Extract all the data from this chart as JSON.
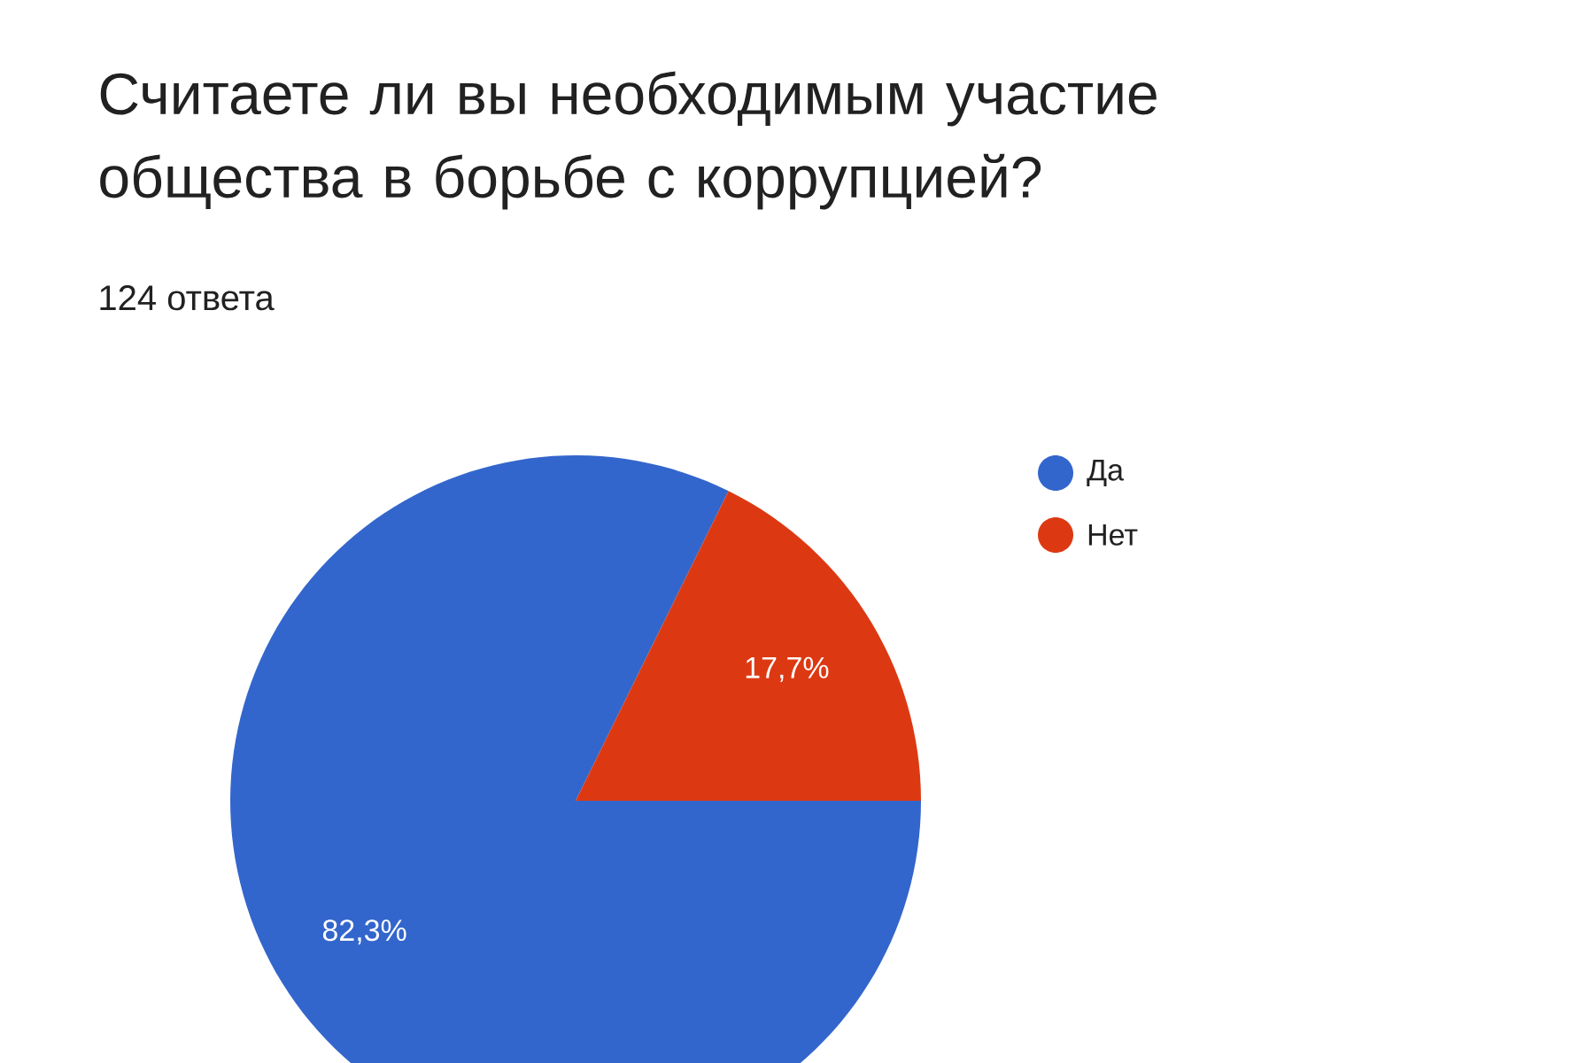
{
  "chart_data": {
    "type": "pie",
    "title": "Считаете ли вы необходимым участие общества в борьбе с коррупцией?",
    "subtitle": "124 ответа",
    "categories": [
      "Да",
      "Нет"
    ],
    "values": [
      82.3,
      17.7
    ],
    "colors": [
      "#3366cc",
      "#dc3912"
    ],
    "value_labels": [
      "82,3%",
      "17,7%"
    ],
    "legend": "top right"
  }
}
